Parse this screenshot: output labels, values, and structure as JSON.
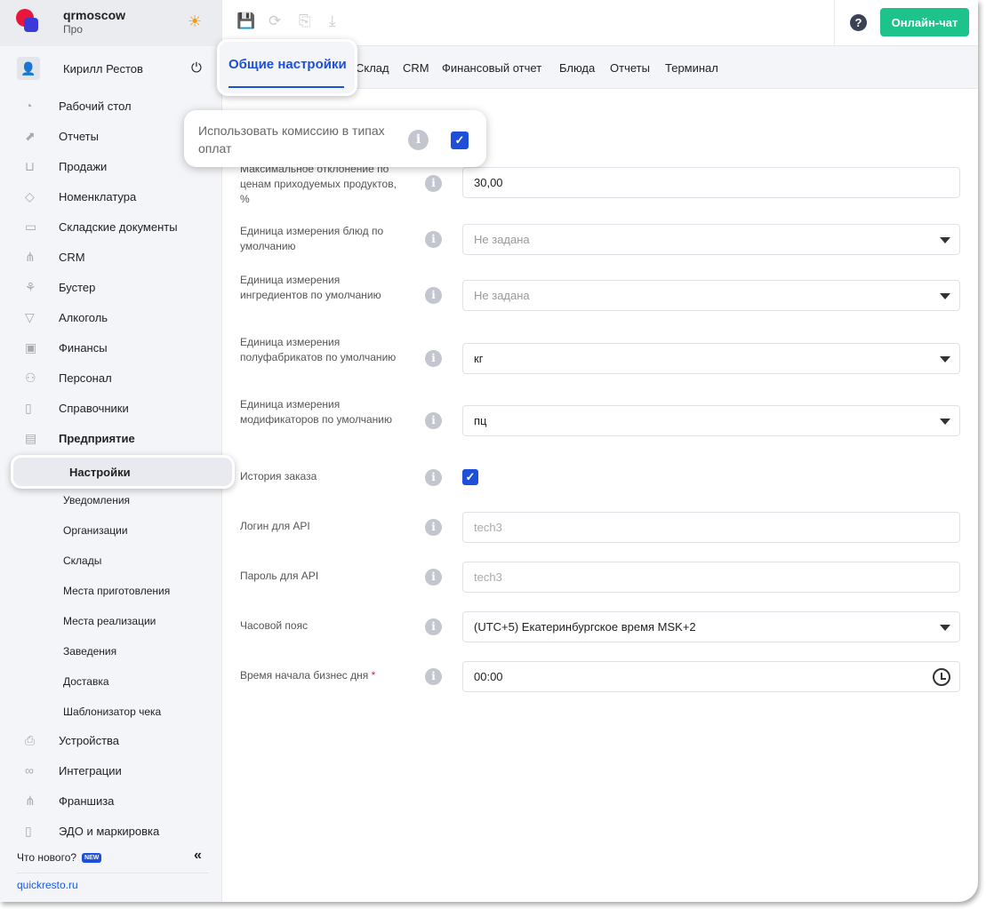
{
  "brand": {
    "name": "qrmoscow",
    "plan": "Про"
  },
  "user": {
    "name": "Кирилл Рестов"
  },
  "sidebar": {
    "items": [
      {
        "label": "Рабочий стол",
        "icon": "dashboard-icon"
      },
      {
        "label": "Отчеты",
        "icon": "chart-icon"
      },
      {
        "label": "Продажи",
        "icon": "basket-icon"
      },
      {
        "label": "Номенклатура",
        "icon": "tag-icon"
      },
      {
        "label": "Складские документы",
        "icon": "archive-icon"
      },
      {
        "label": "CRM",
        "icon": "hierarchy-icon"
      },
      {
        "label": "Бустер",
        "icon": "booster-icon"
      },
      {
        "label": "Алкоголь",
        "icon": "glass-icon"
      },
      {
        "label": "Финансы",
        "icon": "wallet-icon"
      },
      {
        "label": "Персонал",
        "icon": "people-icon"
      },
      {
        "label": "Справочники",
        "icon": "book-icon"
      },
      {
        "label": "Предприятие",
        "icon": "store-icon"
      }
    ],
    "sub": [
      "Настройки",
      "Уведомления",
      "Организации",
      "Склады",
      "Места приготовления",
      "Места реализации",
      "Заведения",
      "Доставка",
      "Шаблонизатор чека"
    ],
    "bottom": [
      {
        "label": "Устройства",
        "icon": "printer-icon"
      },
      {
        "label": "Интеграции",
        "icon": "infinity-icon"
      },
      {
        "label": "Франшиза",
        "icon": "hierarchy-icon"
      },
      {
        "label": "ЭДО и маркировка",
        "icon": "document-icon"
      }
    ],
    "whats_new": "Что нового?",
    "new_badge": "NEW",
    "site": "quickresto.ru"
  },
  "header": {
    "help": "?",
    "chat": "Онлайн-чат"
  },
  "tabs": [
    "Общие настройки",
    "Склад",
    "CRM",
    "Финансовый отчет",
    "Блюда",
    "Отчеты",
    "Терминал"
  ],
  "active_tab": "Общие настройки",
  "popup": {
    "label": "Использовать комиссию в типах оплат",
    "checked": true
  },
  "form": {
    "max_dev": {
      "label": "Максимальное отклонение по ценам приходуемых продуктов, %",
      "value": "30,00"
    },
    "dish_unit": {
      "label": "Единица измерения блюд по умолчанию",
      "value": "Не задана"
    },
    "ingr_unit": {
      "label": "Единица измерения ингредиентов по умолчанию",
      "value": "Не задана"
    },
    "semi_unit": {
      "label": "Единица измерения полуфабрикатов по умолчанию",
      "value": "кг"
    },
    "mod_unit": {
      "label": "Единица измерения модификаторов по умолчанию",
      "value": "пц"
    },
    "history": {
      "label": "История заказа",
      "checked": true
    },
    "api_login": {
      "label": "Логин для API",
      "value": "tech3"
    },
    "api_pass": {
      "label": "Пароль для API",
      "value": "tech3"
    },
    "tz": {
      "label": "Часовой пояс",
      "value": "(UTC+5) Екатеринбургское время MSK+2"
    },
    "bday": {
      "label": "Время начала бизнес дня",
      "value": "00:00",
      "required": "*"
    }
  },
  "colors": {
    "accent": "#1d4fd8",
    "chat": "#1ec28b",
    "logo_red": "#e8163c"
  }
}
